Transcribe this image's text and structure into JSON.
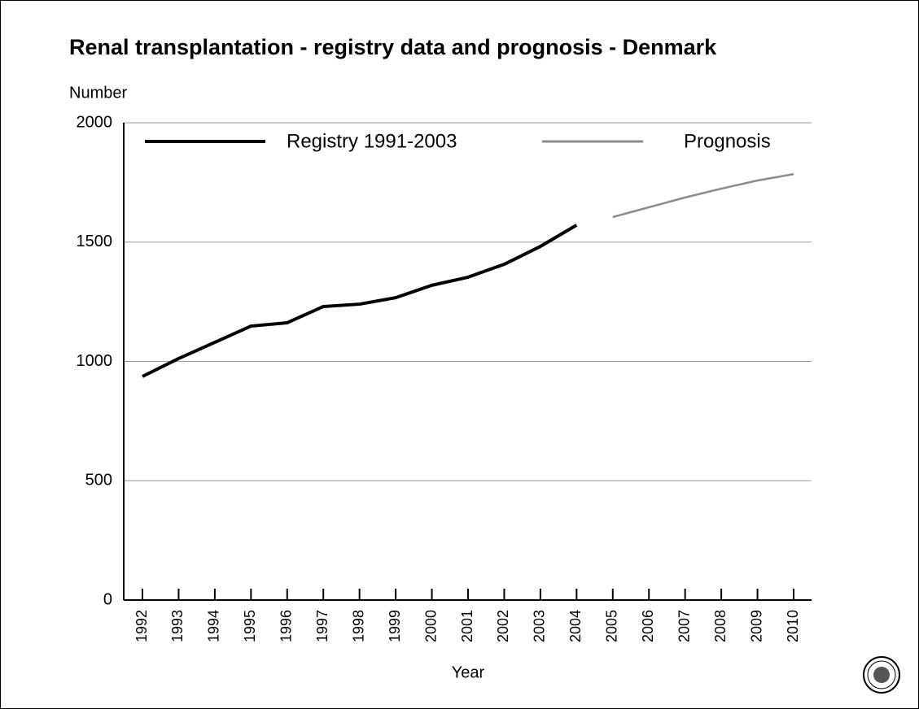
{
  "chart_data": {
    "type": "line",
    "title": "Renal transplantation - registry data and prognosis - Denmark",
    "y_label": "Number",
    "x_label": "Year",
    "categories": [
      "1992",
      "1993",
      "1994",
      "1995",
      "1996",
      "1997",
      "1998",
      "1999",
      "2000",
      "2001",
      "2002",
      "2003",
      "2004",
      "2005",
      "2006",
      "2007",
      "2008",
      "2009",
      "2010"
    ],
    "series": [
      {
        "name": "Registry 1991-2003",
        "color": "#000000",
        "values": [
          937,
          1012,
          1080,
          1148,
          1162,
          1230,
          1240,
          1267,
          1319,
          1353,
          1407,
          1482,
          1571,
          null,
          null,
          null,
          null,
          null,
          null
        ]
      },
      {
        "name": "Prognosis",
        "color": "#8c8c8c",
        "values": [
          null,
          null,
          null,
          null,
          null,
          null,
          null,
          null,
          null,
          null,
          null,
          null,
          null,
          1605,
          1646,
          1687,
          1724,
          1758,
          1785
        ]
      }
    ],
    "ylim": [
      0,
      2000
    ],
    "yticks": [
      0,
      500,
      1000,
      1500,
      2000
    ],
    "grid": true,
    "legend": "top"
  }
}
